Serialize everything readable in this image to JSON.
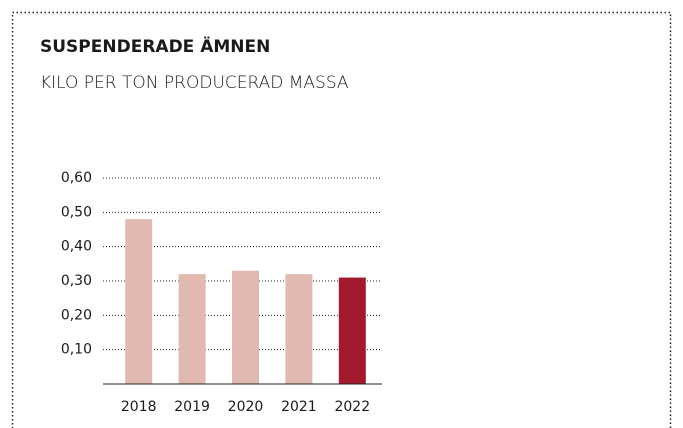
{
  "chart_data": {
    "type": "bar",
    "title": "SUSPENDERADE ÄMNEN",
    "subtitle": "KILO PER TON PRODUCERAD MASSA",
    "categories": [
      "2018",
      "2019",
      "2020",
      "2021",
      "2022"
    ],
    "values": [
      0.48,
      0.32,
      0.33,
      0.32,
      0.31
    ],
    "colors": [
      "#e2b9b0",
      "#e2b9b0",
      "#e2b9b0",
      "#e2b9b0",
      "#a21a2b"
    ],
    "ylim": [
      0,
      0.6
    ],
    "yticks": [
      {
        "value": 0.1,
        "label": "0,10"
      },
      {
        "value": 0.2,
        "label": "0,20"
      },
      {
        "value": 0.3,
        "label": "0,30"
      },
      {
        "value": 0.4,
        "label": "0,40"
      },
      {
        "value": 0.5,
        "label": "0,50"
      },
      {
        "value": 0.6,
        "label": "0,60"
      }
    ],
    "grid": true
  }
}
